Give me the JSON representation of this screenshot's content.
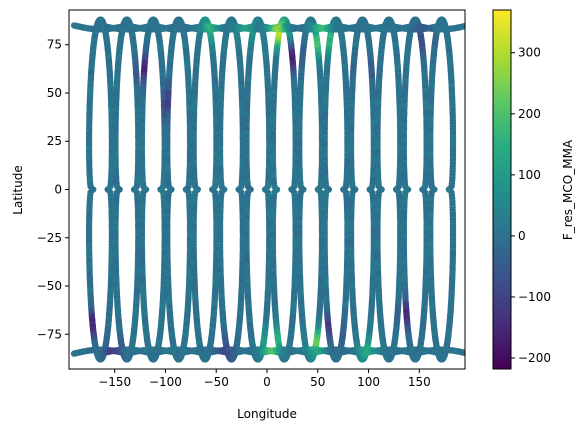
{
  "chart_data": {
    "type": "scatter",
    "title": "",
    "xlabel": "Longitude",
    "ylabel": "Latitude",
    "xlim": [
      -195,
      195
    ],
    "ylim": [
      -93,
      93
    ],
    "xticks": [
      -150,
      -100,
      -50,
      0,
      50,
      100,
      150
    ],
    "yticks": [
      -75,
      -50,
      -25,
      0,
      25,
      50,
      75
    ],
    "grid": false,
    "colormap": "viridis",
    "colorbar": {
      "label": "F_res_MCO_MMA",
      "range": [
        -218,
        370
      ],
      "ticks": [
        -200,
        -100,
        0,
        100,
        200,
        300
      ]
    },
    "series": [
      {
        "description_of_tracks": "satellite ground tracks forming vertical loops",
        "loop_centers_lon": [
          -164,
          -138,
          -112,
          -87,
          -61,
          -35,
          -9,
          17,
          43,
          68,
          94,
          120,
          146,
          172
        ],
        "loop_half_width_lon": 13,
        "lat_range": [
          -88,
          88
        ],
        "baseline_value": 5,
        "anomalies": [
          {
            "lon": 12,
            "lat": 80,
            "value": 320
          },
          {
            "lon": 55,
            "lat": 78,
            "value": 300
          },
          {
            "lon": -55,
            "lat": 85,
            "value": 150
          },
          {
            "lon": -20,
            "lat": 82,
            "value": 120
          },
          {
            "lon": 5,
            "lat": -80,
            "value": 250
          },
          {
            "lon": 50,
            "lat": -78,
            "value": 230
          },
          {
            "lon": 100,
            "lat": -83,
            "value": 130
          },
          {
            "lon": -170,
            "lat": -70,
            "value": -160
          },
          {
            "lon": -120,
            "lat": 62,
            "value": -150
          },
          {
            "lon": -95,
            "lat": 45,
            "value": -130
          },
          {
            "lon": 25,
            "lat": 70,
            "value": -170
          },
          {
            "lon": 65,
            "lat": -72,
            "value": -180
          },
          {
            "lon": 140,
            "lat": -65,
            "value": -160
          },
          {
            "lon": 95,
            "lat": 62,
            "value": -110
          },
          {
            "lon": 155,
            "lat": 78,
            "value": -100
          },
          {
            "lon": -150,
            "lat": -85,
            "value": -110
          },
          {
            "lon": -40,
            "lat": -85,
            "value": -90
          }
        ]
      }
    ]
  }
}
